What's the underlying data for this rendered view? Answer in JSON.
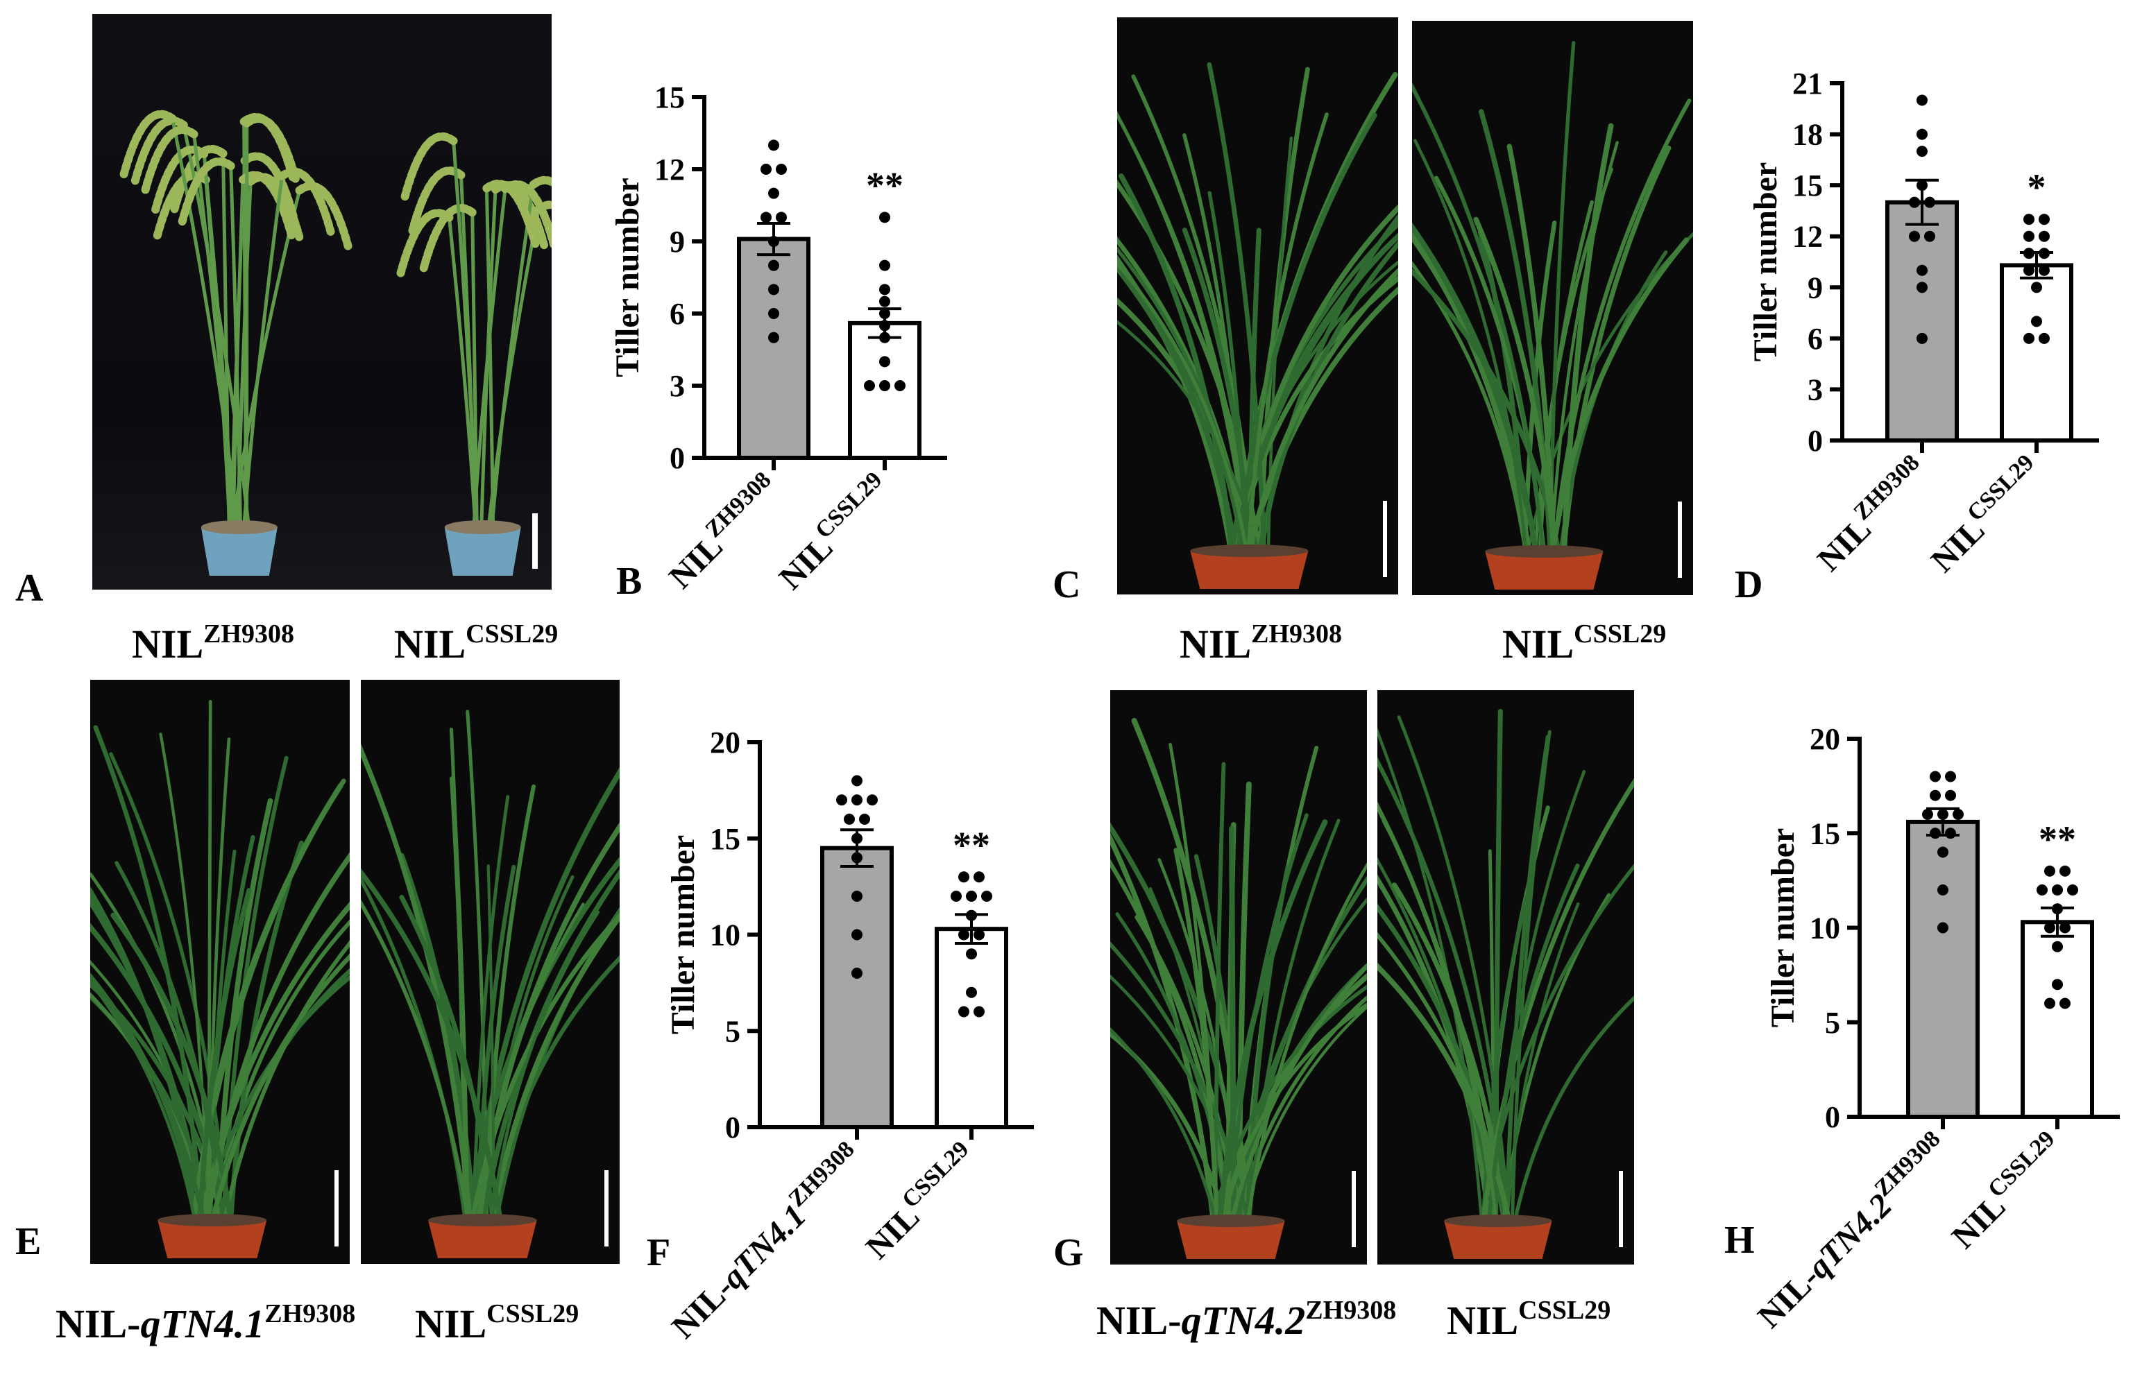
{
  "panels": {
    "A": "A",
    "B": "B",
    "C": "C",
    "D": "D",
    "E": "E",
    "F": "F",
    "G": "G",
    "H": "H"
  },
  "captions": {
    "a_left": {
      "base": "NIL",
      "sup": "ZH9308"
    },
    "a_right": {
      "base": "NIL",
      "sup": "CSSL29"
    },
    "c_left": {
      "base": "NIL",
      "sup": "ZH9308"
    },
    "c_right": {
      "base": "NIL",
      "sup": "CSSL29"
    },
    "e_left": {
      "base": "NIL-",
      "italic": "qTN4.1",
      "sup": "ZH9308"
    },
    "e_right": {
      "base": "NIL",
      "sup": "CSSL29"
    },
    "g_left": {
      "base": "NIL-",
      "italic": "qTN4.2",
      "sup": "ZH9308"
    },
    "g_right": {
      "base": "NIL",
      "sup": "CSSL29"
    }
  },
  "colors": {
    "bar_gray": "#a6a6a6",
    "bar_white": "#ffffff",
    "axis": "#000000",
    "photo_bg": "#0a0a0a",
    "leaf": "#3f7f3a",
    "panicle": "#9db85a",
    "pot_blue": "#6fa3bd",
    "pot_red": "#b3401f"
  },
  "chart_data": [
    {
      "id": "B",
      "type": "bar",
      "ylabel": "Tiller number",
      "ylim": [
        0,
        15
      ],
      "yticks": [
        "0",
        "3",
        "6",
        "9",
        "12",
        "15"
      ],
      "categories": [
        {
          "base": "NIL",
          "italic": "",
          "sup": "ZH9308"
        },
        {
          "base": "NIL",
          "italic": "",
          "sup": "CSSL29"
        }
      ],
      "values": [
        9.1,
        5.6
      ],
      "errors": [
        0.65,
        0.6
      ],
      "significance": [
        "",
        "**"
      ],
      "points": [
        [
          13,
          12,
          12,
          11,
          10,
          10,
          9,
          8,
          7,
          6,
          5
        ],
        [
          10,
          8,
          7,
          6.5,
          6,
          5.5,
          5,
          4,
          3,
          3,
          3
        ]
      ]
    },
    {
      "id": "D",
      "type": "bar",
      "ylabel": "Tiller number",
      "ylim": [
        0,
        21
      ],
      "yticks": [
        "0",
        "3",
        "6",
        "9",
        "12",
        "15",
        "18",
        "21"
      ],
      "categories": [
        {
          "base": "NIL",
          "italic": "",
          "sup": "ZH9308"
        },
        {
          "base": "NIL",
          "italic": "",
          "sup": "CSSL29"
        }
      ],
      "values": [
        14.0,
        10.3
      ],
      "errors": [
        1.3,
        0.75
      ],
      "significance": [
        "",
        "*"
      ],
      "points": [
        [
          20,
          18,
          17,
          15,
          14,
          14,
          12,
          12,
          10,
          9,
          6
        ],
        [
          13,
          13,
          12,
          12,
          11,
          11,
          10,
          10,
          9,
          7,
          6,
          6
        ]
      ]
    },
    {
      "id": "F",
      "type": "bar",
      "ylabel": "Tiller number",
      "ylim": [
        0,
        20
      ],
      "yticks": [
        "0",
        "5",
        "10",
        "15",
        "20"
      ],
      "categories": [
        {
          "base": "NIL-",
          "italic": "qTN4.1",
          "sup": "ZH9308"
        },
        {
          "base": "NIL",
          "italic": "",
          "sup": "CSSL29"
        }
      ],
      "values": [
        14.5,
        10.3
      ],
      "errors": [
        0.95,
        0.75
      ],
      "significance": [
        "",
        "**"
      ],
      "points": [
        [
          18,
          17,
          17,
          17,
          16,
          16,
          15,
          14,
          12,
          10,
          8
        ],
        [
          13,
          13,
          12,
          12,
          12,
          11,
          10,
          10,
          9,
          7,
          6,
          6
        ]
      ]
    },
    {
      "id": "H",
      "type": "bar",
      "ylabel": "Tiller number",
      "ylim": [
        0,
        20
      ],
      "yticks": [
        "0",
        "5",
        "10",
        "15",
        "20"
      ],
      "categories": [
        {
          "base": "NIL-",
          "italic": "qTN4.2",
          "sup": "ZH9308"
        },
        {
          "base": "NIL",
          "italic": "",
          "sup": "CSSL29"
        }
      ],
      "values": [
        15.6,
        10.3
      ],
      "errors": [
        0.7,
        0.75
      ],
      "significance": [
        "",
        "**"
      ],
      "points": [
        [
          18,
          18,
          17,
          17,
          16,
          16,
          16,
          15,
          15,
          14,
          12,
          10
        ],
        [
          13,
          13,
          12,
          12,
          12,
          11,
          10,
          10,
          9,
          7,
          6,
          6
        ]
      ]
    }
  ]
}
